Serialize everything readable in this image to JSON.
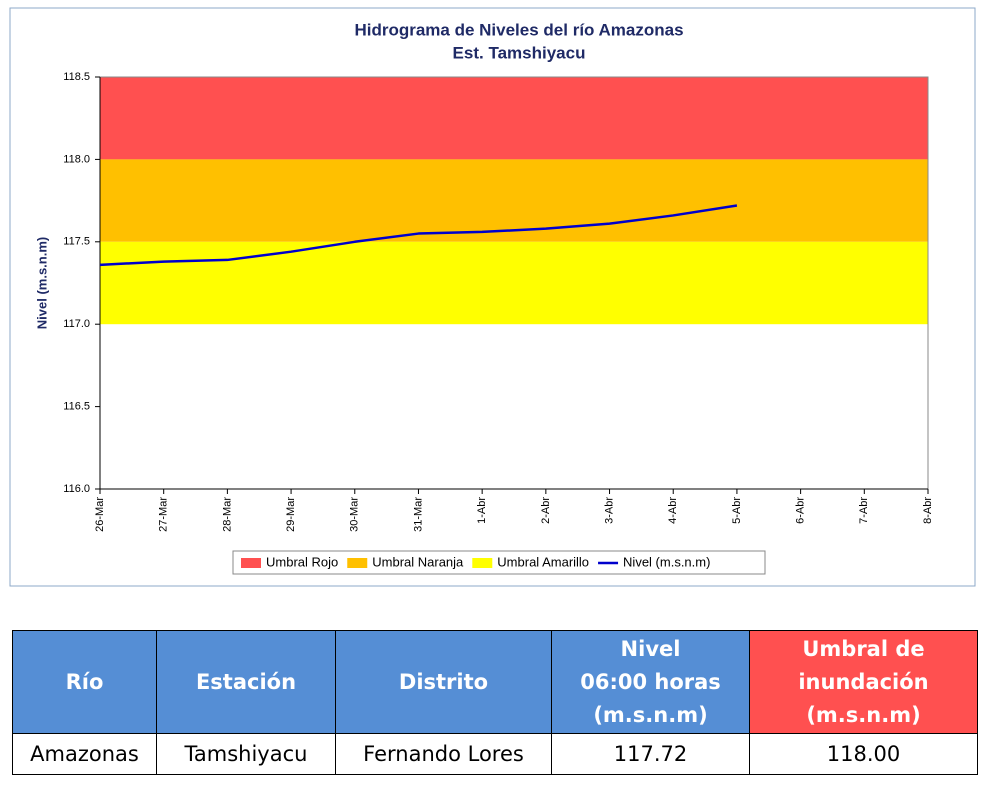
{
  "chart_data": {
    "type": "line",
    "title": [
      "Hidrograma de Niveles del río Amazonas",
      "Est. Tamshiyacu"
    ],
    "y_label": "Nivel (m.s.n.m)",
    "categories": [
      "26-Mar",
      "27-Mar",
      "28-Mar",
      "29-Mar",
      "30-Mar",
      "31-Mar",
      "1-Abr",
      "2-Abr",
      "3-Abr",
      "4-Abr",
      "5-Abr",
      "6-Abr",
      "7-Abr",
      "8-Abr"
    ],
    "bands": [
      {
        "name": "Umbral Rojo",
        "color": "#ff5050",
        "from": 118,
        "to": 118.5
      },
      {
        "name": "Umbral Naranja",
        "color": "#ffc000",
        "from": 117.5,
        "to": 118
      },
      {
        "name": "Umbral Amarillo",
        "color": "#ffff00",
        "from": 117,
        "to": 117.5
      }
    ],
    "series": [
      {
        "name": "Nivel (m.s.n.m)",
        "color": "#0000cc",
        "values": [
          117.36,
          117.38,
          117.39,
          117.44,
          117.5,
          117.55,
          117.56,
          117.58,
          117.61,
          117.66,
          117.72,
          null,
          null,
          null
        ]
      }
    ],
    "ylim": [
      116,
      118.5
    ],
    "yticks": [
      {
        "value": 116,
        "label": "116.0"
      },
      {
        "value": 116.5,
        "label": "116.5"
      },
      {
        "value": 117,
        "label": "117.0"
      },
      {
        "value": 117.5,
        "label": "117.5"
      },
      {
        "value": 118,
        "label": "118.0"
      },
      {
        "value": 118.5,
        "label": "118.5"
      }
    ],
    "grid": false,
    "legend": "bottom"
  },
  "table": {
    "header": [
      [
        "Río"
      ],
      [
        "Estación"
      ],
      [
        "Distrito"
      ],
      [
        "Nivel",
        "06:00 horas",
        "(m.s.n.m)"
      ],
      [
        "Umbral de",
        "inundación",
        "(m.s.n.m)"
      ]
    ],
    "rows": [
      [
        "Amazonas",
        "Tamshiyacu",
        "Fernando Lores",
        "117.72",
        "118.00"
      ]
    ]
  }
}
